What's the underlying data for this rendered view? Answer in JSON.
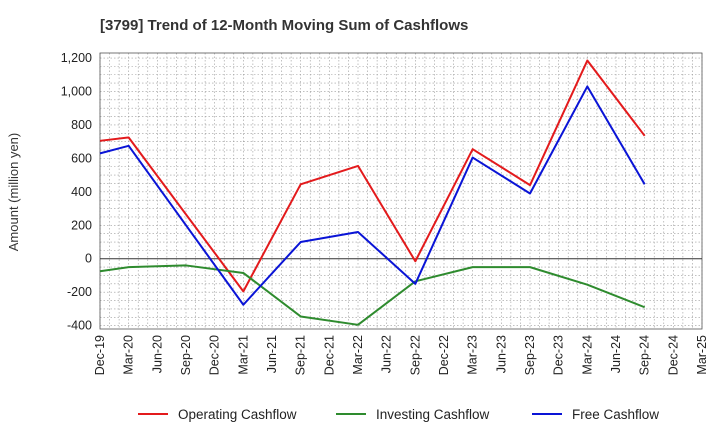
{
  "chart_data": {
    "type": "line",
    "title": "[3799]  Trend of 12-Month Moving Sum of Cashflows",
    "ylabel": "Amount (million yen)",
    "xlabel": "",
    "ylim": [
      -420,
      1230
    ],
    "yticks": [
      -400,
      -200,
      0,
      200,
      400,
      600,
      800,
      1000,
      1200
    ],
    "grid": true,
    "legend_position": "bottom",
    "categories": [
      "Dec-19",
      "Mar-20",
      "Jun-20",
      "Sep-20",
      "Dec-20",
      "Mar-21",
      "Jun-21",
      "Sep-21",
      "Dec-21",
      "Mar-22",
      "Jun-22",
      "Sep-22",
      "Dec-22",
      "Mar-23",
      "Jun-23",
      "Sep-23",
      "Dec-23",
      "Mar-24",
      "Jun-24",
      "Sep-24",
      "Dec-24",
      "Mar-25"
    ],
    "series": [
      {
        "name": "Operating Cashflow",
        "color": "#e31a1c",
        "values": [
          705,
          725,
          null,
          null,
          null,
          -195,
          null,
          445,
          null,
          555,
          null,
          -15,
          null,
          655,
          null,
          440,
          null,
          1185,
          null,
          735,
          null,
          null
        ]
      },
      {
        "name": "Investing Cashflow",
        "color": "#2e8b2e",
        "values": [
          -75,
          -50,
          null,
          -40,
          null,
          -85,
          null,
          -345,
          null,
          -395,
          null,
          -135,
          null,
          -50,
          null,
          -50,
          null,
          -155,
          null,
          -290,
          null,
          null
        ]
      },
      {
        "name": "Free Cashflow",
        "color": "#0a14d6",
        "values": [
          630,
          675,
          null,
          null,
          null,
          -275,
          null,
          100,
          null,
          160,
          null,
          -150,
          null,
          605,
          null,
          390,
          null,
          1030,
          null,
          445,
          null,
          null
        ]
      }
    ]
  }
}
